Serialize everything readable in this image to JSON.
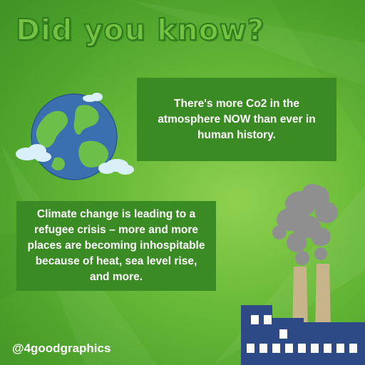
{
  "title": "Did you know?",
  "fact_co2": "There's more Co2 in the atmosphere NOW than ever in human history.",
  "fact_refugee": "Climate change is leading to a refugee crisis – more and more places are becoming inhospitable because of heat, sea level rise, and more.",
  "handle": "@4goodgraphics",
  "colors": {
    "background": "#6cbc3a",
    "title_fill": "#74c244",
    "title_outline": "#2f7a1b",
    "box": "#3a8b24",
    "text": "#ffffff",
    "factory": "#2d4a86",
    "smoke": "#8f8f8f",
    "chimney": "#c7b48a"
  },
  "icons": [
    "earth-icon",
    "factory-icon",
    "smoke-icon",
    "cloud-icon"
  ]
}
